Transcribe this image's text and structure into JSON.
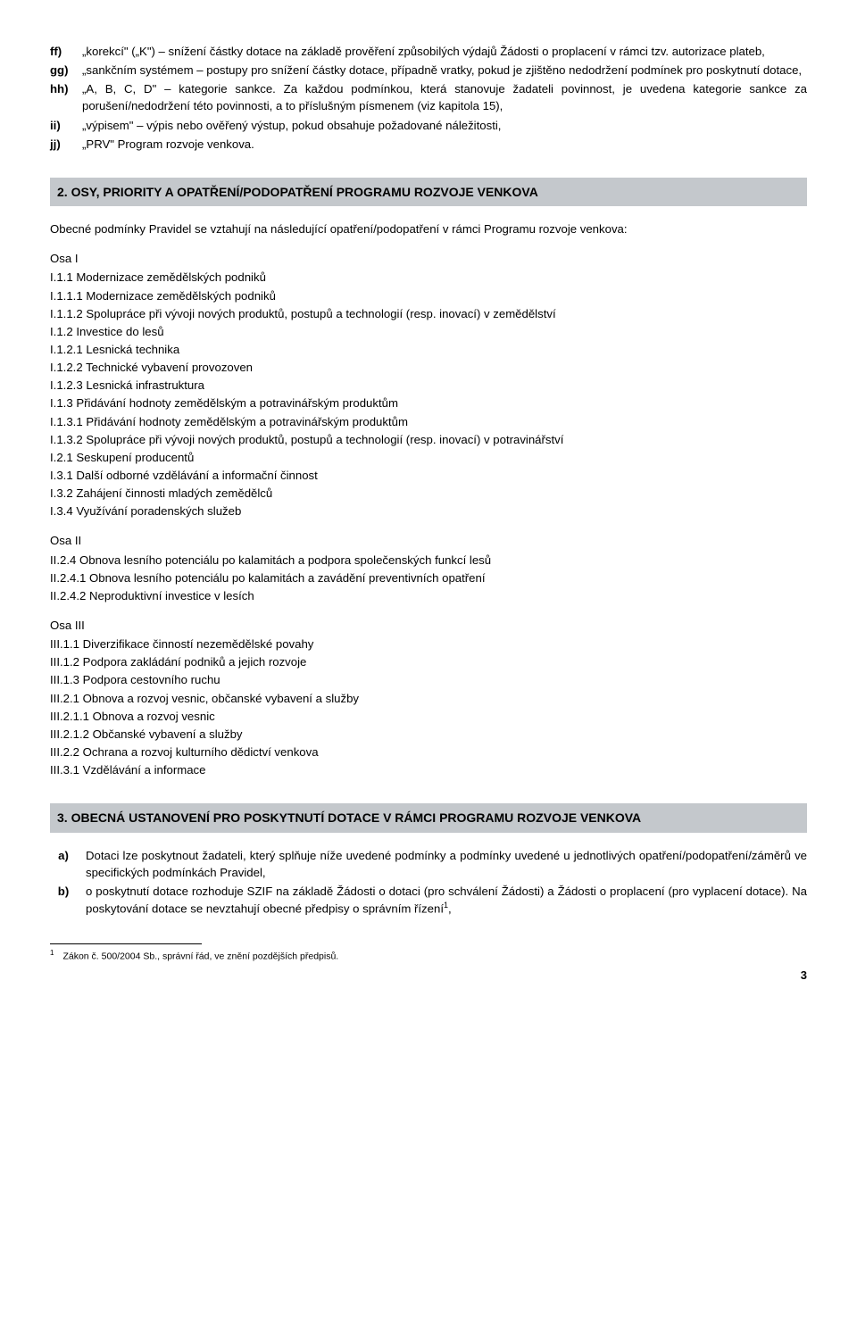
{
  "defs": [
    {
      "label": "ff)",
      "text": "„korekcí\" („K\") – snížení částky dotace na základě prověření způsobilých výdajů Žádosti o proplacení v rámci tzv. autorizace plateb,"
    },
    {
      "label": "gg)",
      "text": "„sankčním systémem – postupy pro snížení částky dotace, případně vratky, pokud je zjištěno nedodržení podmínek pro poskytnutí dotace,"
    },
    {
      "label": "hh)",
      "text": "„A, B, C, D\" – kategorie sankce. Za každou podmínkou, která stanovuje žadateli povinnost, je uvedena kategorie sankce za porušení/nedodržení této povinnosti, a to příslušným písmenem  (viz kapitola 15),"
    },
    {
      "label": "ii)",
      "text": "„výpisem\" – výpis nebo ověřený výstup, pokud obsahuje požadované náležitosti,"
    },
    {
      "label": "jj)",
      "text": "„PRV\" Program rozvoje venkova."
    }
  ],
  "section2": {
    "heading": "2.   OSY, PRIORITY A OPATŘENÍ/PODOPATŘENÍ PROGRAMU ROZVOJE VENKOVA",
    "intro": "Obecné podmínky Pravidel se vztahují na následující opatření/podopatření v rámci Programu rozvoje venkova:",
    "osa1_label": "Osa I",
    "osa1_lines": [
      {
        "lvl": 1,
        "t": "I.1.1 Modernizace zemědělských podniků"
      },
      {
        "lvl": 2,
        "t": "I.1.1.1 Modernizace zemědělských podniků"
      },
      {
        "lvl": 2,
        "t": "I.1.1.2 Spolupráce při vývoji nových produktů, postupů a technologií (resp. inovací) v zemědělství"
      },
      {
        "lvl": 1,
        "t": "I.1.2 Investice do lesů"
      },
      {
        "lvl": 2,
        "t": "I.1.2.1 Lesnická technika"
      },
      {
        "lvl": 2,
        "t": "I.1.2.2 Technické vybavení provozoven"
      },
      {
        "lvl": 2,
        "t": "I.1.2.3 Lesnická infrastruktura"
      },
      {
        "lvl": 1,
        "t": "I.1.3 Přidávání hodnoty zemědělským a potravinářským produktům"
      },
      {
        "lvl": 2,
        "t": "I.1.3.1 Přidávání hodnoty zemědělským a potravinářským produktům"
      },
      {
        "lvl": 2,
        "t": "I.1.3.2 Spolupráce při vývoji nových produktů, postupů a technologií (resp. inovací) v potravinářství"
      },
      {
        "lvl": 1,
        "t": "I.2.1 Seskupení producentů"
      },
      {
        "lvl": 1,
        "t": "I.3.1 Další odborné vzdělávání a informační činnost"
      },
      {
        "lvl": 1,
        "t": "I.3.2 Zahájení činnosti mladých zemědělců"
      },
      {
        "lvl": 1,
        "t": "I.3.4 Využívání poradenských služeb"
      }
    ],
    "osa2_label": "Osa II",
    "osa2_lines": [
      {
        "lvl": 1,
        "t": "II.2.4 Obnova lesního potenciálu po kalamitách a podpora společenských funkcí lesů"
      },
      {
        "lvl": 2,
        "t": "II.2.4.1 Obnova lesního potenciálu po kalamitách a zavádění preventivních opatření"
      },
      {
        "lvl": 2,
        "t": "II.2.4.2 Neproduktivní investice v lesích"
      }
    ],
    "osa3_label": "Osa III",
    "osa3_lines": [
      {
        "lvl": 1,
        "t": "III.1.1 Diverzifikace činností nezemědělské povahy"
      },
      {
        "lvl": 1,
        "t": "III.1.2 Podpora zakládání podniků a jejich rozvoje"
      },
      {
        "lvl": 1,
        "t": "III.1.3 Podpora cestovního ruchu"
      },
      {
        "lvl": 1,
        "t": "III.2.1 Obnova a rozvoj vesnic, občanské vybavení a služby"
      },
      {
        "lvl": 2,
        "t": "III.2.1.1 Obnova a rozvoj vesnic"
      },
      {
        "lvl": 2,
        "t": "III.2.1.2 Občanské vybavení a služby"
      },
      {
        "lvl": 1,
        "t": "III.2.2 Ochrana a rozvoj kulturního dědictví venkova"
      },
      {
        "lvl": 1,
        "t": "III.3.1 Vzdělávání a informace"
      }
    ]
  },
  "section3": {
    "heading": "3.   OBECNÁ USTANOVENÍ PRO POSKYTNUTÍ DOTACE V RÁMCI PROGRAMU ROZVOJE VENKOVA",
    "items": [
      {
        "label": "a)",
        "text": "Dotaci lze poskytnout žadateli, který splňuje níže uvedené podmínky a podmínky uvedené u jednotlivých opatření/podopatření/záměrů ve specifických podmínkách Pravidel,"
      },
      {
        "label": "b)",
        "text_html": "o poskytnutí dotace rozhoduje SZIF na základě Žádosti o dotaci (pro schválení Žádosti) a Žádosti o proplacení (pro vyplacení dotace). Na poskytování dotace se nevztahují obecné předpisy o správním řízení<sup class=\"inline\">1</sup>,"
      }
    ]
  },
  "footnote": "Zákon č. 500/2004 Sb., správní řád, ve znění pozdějších předpisů.",
  "pagenum": "3"
}
